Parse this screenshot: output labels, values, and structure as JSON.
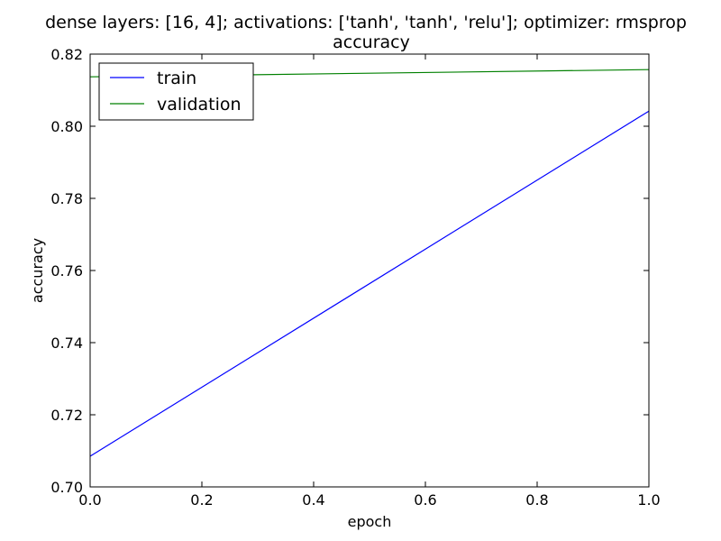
{
  "chart_data": {
    "type": "line",
    "title": "dense layers: [16, 4]; activations: ['tanh', 'tanh', 'relu']; optimizer: rmsprop",
    "subtitle": "accuracy",
    "xlabel": "epoch",
    "ylabel": "accuracy",
    "xlim": [
      0.0,
      1.0
    ],
    "ylim": [
      0.7,
      0.82
    ],
    "xticks": [
      "0.0",
      "0.2",
      "0.4",
      "0.6",
      "0.8",
      "1.0"
    ],
    "yticks": [
      "0.70",
      "0.72",
      "0.74",
      "0.76",
      "0.78",
      "0.80",
      "0.82"
    ],
    "grid": false,
    "legend_position": "top-left",
    "series": [
      {
        "name": "train",
        "color": "#0000ff",
        "x": [
          0.0,
          1.0
        ],
        "y": [
          0.7085,
          0.8042
        ]
      },
      {
        "name": "validation",
        "color": "#008000",
        "x": [
          0.0,
          1.0
        ],
        "y": [
          0.8137,
          0.8157
        ]
      }
    ]
  }
}
